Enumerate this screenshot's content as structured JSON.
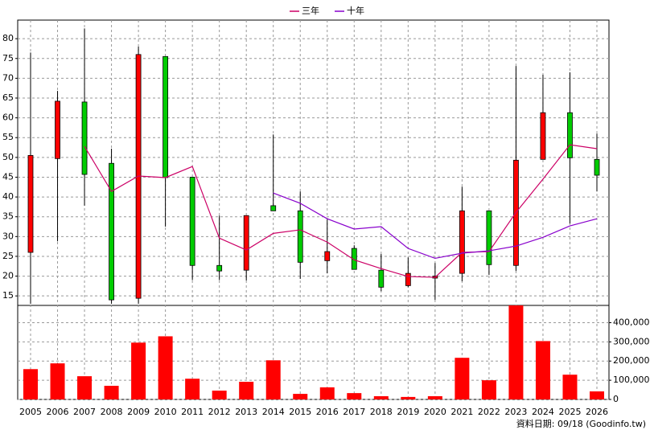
{
  "chart_data": {
    "type": "candlestick",
    "categories": [
      "2005",
      "2006",
      "2007",
      "2008",
      "2009",
      "2010",
      "2011",
      "2012",
      "2013",
      "2014",
      "2015",
      "2016",
      "2017",
      "2018",
      "2019",
      "2020",
      "2021",
      "2022",
      "2023",
      "2024",
      "2025",
      "2026"
    ],
    "open": [
      26,
      49.7,
      64,
      48.5,
      14.4,
      75.5,
      45,
      22.7,
      21.5,
      37.8,
      36.5,
      23.9,
      27,
      21.5,
      17.6,
      19.5,
      20.7,
      36.5,
      22.7,
      49.5,
      61.3,
      49.5
    ],
    "high": [
      76.5,
      66.8,
      82.6,
      52.2,
      78,
      75.5,
      45,
      35.3,
      35.3,
      55.8,
      41.4,
      34.3,
      27.8,
      25.6,
      24.7,
      23.3,
      42.6,
      36.5,
      73.1,
      70.9,
      71.5,
      56
    ],
    "low": [
      13,
      28.8,
      37.8,
      13,
      13,
      32.5,
      19,
      19,
      18.9,
      36.5,
      19.3,
      20.7,
      21.7,
      16.2,
      17.2,
      14,
      18.7,
      20.3,
      21.3,
      49.5,
      33.3,
      41.4
    ],
    "close": [
      50.5,
      64.2,
      45.7,
      14,
      76,
      44.9,
      22.7,
      21.3,
      35.3,
      36.5,
      23.5,
      26.2,
      21.7,
      17.2,
      20.7,
      20,
      36.5,
      22.9,
      49.3,
      61.3,
      49.9,
      45.5
    ],
    "up_color": "#ff0000",
    "down_color": "#00cc00",
    "series": [
      {
        "name": "三年",
        "color": "#cc0066",
        "values": [
          null,
          null,
          52.8,
          41.4,
          45.3,
          44.9,
          47.7,
          29.6,
          26.6,
          30.8,
          31.7,
          28.6,
          24.1,
          21.9,
          19.9,
          19.7,
          26,
          26.2,
          36.1,
          44.5,
          53.2,
          52.2
        ]
      },
      {
        "name": "十年",
        "color": "#8800cc",
        "values": [
          null,
          null,
          null,
          null,
          null,
          null,
          null,
          null,
          null,
          41,
          38.4,
          34.5,
          31.9,
          32.5,
          27,
          24.5,
          25.8,
          26.4,
          27.6,
          29.8,
          32.7,
          34.5
        ]
      }
    ],
    "ylim": [
      12.6,
      84.7
    ],
    "yticks": [
      15,
      20,
      25,
      30,
      35,
      40,
      45,
      50,
      55,
      60,
      65,
      70,
      75,
      80
    ],
    "volume": {
      "color": "#ff0000",
      "values": [
        158000,
        188000,
        121000,
        71000,
        296000,
        329000,
        108000,
        46000,
        92000,
        204000,
        29000,
        63000,
        33000,
        17000,
        13000,
        17000,
        217000,
        100000,
        492000,
        304000,
        129000,
        42000
      ],
      "ylim": [
        0,
        490000
      ],
      "yticks": [
        0,
        {
          "value": 100000,
          "label": "100,000"
        },
        {
          "value": 200000,
          "label": "200,000"
        },
        {
          "value": 300000,
          "label": "300,000"
        },
        {
          "value": 400000,
          "label": "400,000"
        }
      ]
    },
    "grid": true,
    "footer": "資料日期: 09/18 (Goodinfo.tw)"
  }
}
